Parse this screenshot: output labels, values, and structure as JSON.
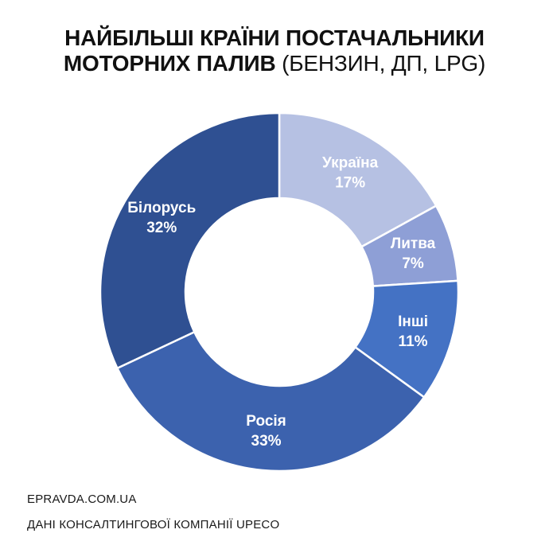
{
  "title": {
    "line1": "НАЙБІЛЬШІ КРАЇНИ ПОСТАЧАЛЬНИКИ",
    "line2_bold": "МОТОРНИХ ПАЛИВ",
    "line2_normal": "(БЕНЗИН, ДП, LPG)"
  },
  "footer": {
    "site": "EPRAVDA.COM.UA",
    "source": "ДАНІ КОНСАЛТИНГОВОЇ КОМПАНІЇ UPECO"
  },
  "chart_data": {
    "type": "pie",
    "variant": "donut",
    "start_angle_deg": 0,
    "direction": "clockwise",
    "slices": [
      {
        "label": "Україна",
        "value": 17,
        "value_label": "17%",
        "color": "#b6c1e3"
      },
      {
        "label": "Литва",
        "value": 7,
        "value_label": "7%",
        "color": "#8e9fd6"
      },
      {
        "label": "Інші",
        "value": 11,
        "value_label": "11%",
        "color": "#4472c4"
      },
      {
        "label": "Росія",
        "value": 33,
        "value_label": "33%",
        "color": "#3c62ae"
      },
      {
        "label": "Білорусь",
        "value": 32,
        "value_label": "32%",
        "color": "#2f5092"
      }
    ]
  }
}
